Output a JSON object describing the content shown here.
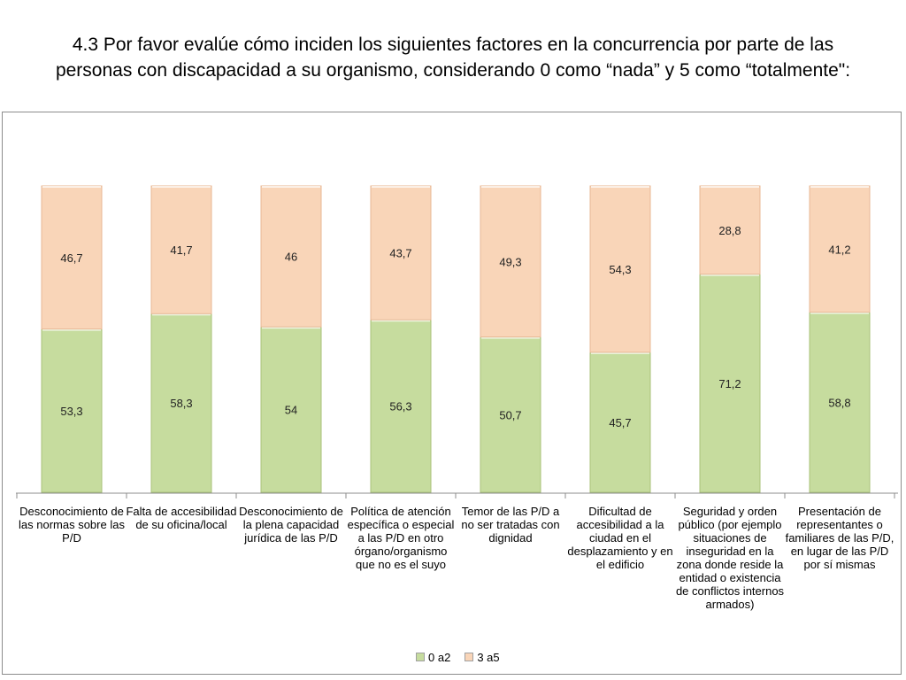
{
  "slide": {
    "title": "4.3 Por favor evalúe cómo inciden los siguientes factores en la concurrencia por parte de las personas con discapacidad a su organismo, considerando 0 como “nada” y 5 como “totalmente\":"
  },
  "chart_data": {
    "type": "bar",
    "stacked": true,
    "percent": true,
    "title": "4.3 Por favor evalúe cómo inciden los siguientes factores en la concurrencia por parte de las personas con discapacidad a su organismo, considerando 0 como “nada” y 5 como “totalmente\":",
    "categories": [
      "Desconocimiento de las normas sobre las P/D",
      "Falta de accesibilidad de su oficina/local",
      "Desconocimiento de la plena capacidad jurídica de las P/D",
      "Política de atención específica o especial a las P/D en otro órgano/organismo que no es el suyo",
      "Temor de las P/D a no ser tratadas con dignidad",
      "Dificultad de accesibilidad a la ciudad en el desplazamiento y en el edificio",
      "Seguridad y orden público (por ejemplo situaciones de inseguridad en la zona donde reside la entidad o existencia de conflictos internos armados)",
      "Presentación de representantes o familiares de las P/D, en lugar de las P/D por sí mismas"
    ],
    "series": [
      {
        "name": "0 a2",
        "color": "#c6dc9e",
        "values": [
          53.3,
          58.3,
          54,
          56.3,
          50.7,
          45.7,
          71.2,
          58.8
        ],
        "labels": [
          "53,3",
          "58,3",
          "54",
          "56,3",
          "50,7",
          "45,7",
          "71,2",
          "58,8"
        ]
      },
      {
        "name": "3 a5",
        "color": "#f9d5b8",
        "values": [
          46.7,
          41.7,
          46,
          43.7,
          49.3,
          54.3,
          28.8,
          41.2
        ],
        "labels": [
          "46,7",
          "41,7",
          "46",
          "43,7",
          "49,3",
          "54,3",
          "28,8",
          "41,2"
        ]
      }
    ],
    "ylim": [
      0,
      100
    ],
    "xlabel": "",
    "ylabel": "",
    "grid": false,
    "legend": "bottom"
  }
}
